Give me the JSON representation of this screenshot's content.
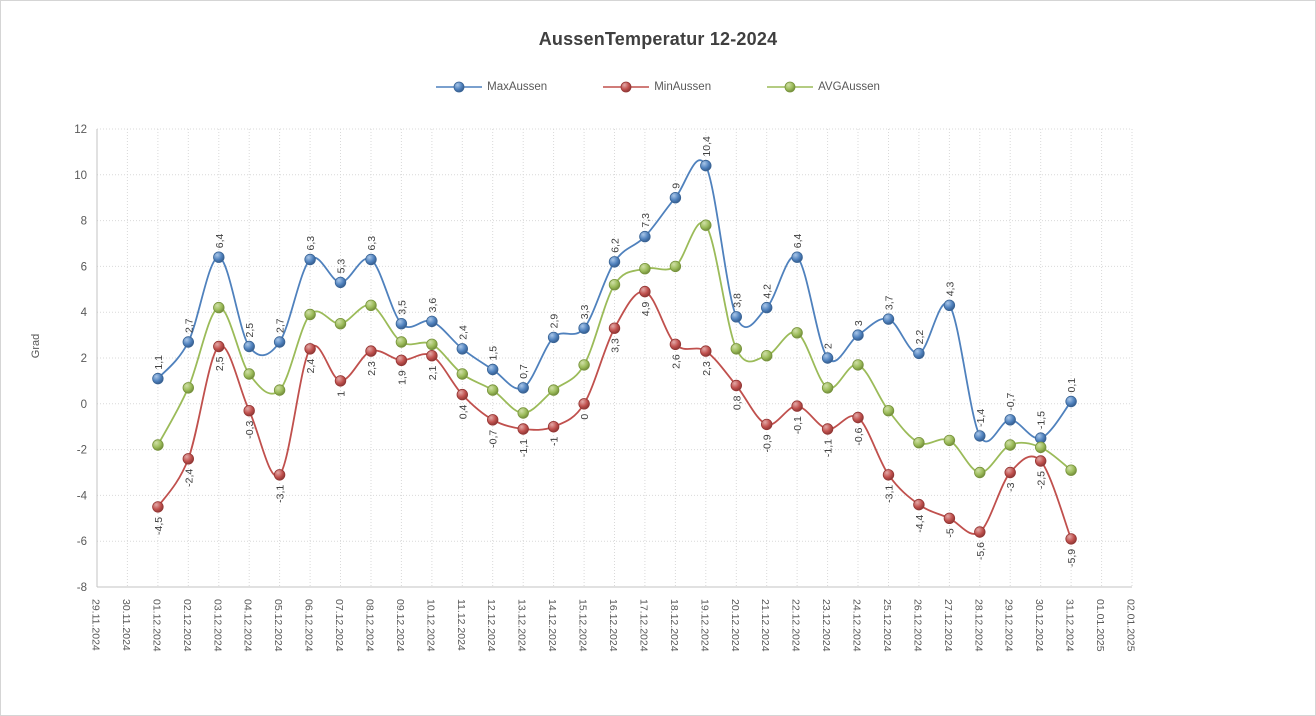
{
  "window": {
    "background": "#ffffff",
    "border_color": "#d5d5d5"
  },
  "chart_data": {
    "type": "line",
    "title": "AussenTemperatur 12-2024",
    "xlabel": "",
    "ylabel": "Grad",
    "ylim": [
      -8,
      12
    ],
    "ytick_step": 2,
    "ytick_labels": [
      "12",
      "10",
      "8",
      "6",
      "4",
      "2",
      "0",
      "-2",
      "-4",
      "-6",
      "-8"
    ],
    "grid": true,
    "grid_color": "#d9d9d9",
    "axis_text_color": "#595959",
    "label_text_color": "#404040",
    "legend_position": "top",
    "smooth_lines": true,
    "x_labels": [
      "29.11.2024",
      "30.11.2024",
      "01.12.2024",
      "02.12.2024",
      "03.12.2024",
      "04.12.2024",
      "05.12.2024",
      "06.12.2024",
      "07.12.2024",
      "08.12.2024",
      "09.12.2024",
      "10.12.2024",
      "11.12.2024",
      "12.12.2024",
      "13.12.2024",
      "14.12.2024",
      "15.12.2024",
      "16.12.2024",
      "17.12.2024",
      "18.12.2024",
      "19.12.2024",
      "20.12.2024",
      "21.12.2024",
      "22.12.2024",
      "23.12.2024",
      "24.12.2024",
      "25.12.2024",
      "26.12.2024",
      "27.12.2024",
      "28.12.2024",
      "29.12.2024",
      "30.12.2024",
      "31.12.2024",
      "01.01.2025",
      "02.01.2025"
    ],
    "data_start_index": 2,
    "series": [
      {
        "name": "MaxAussen",
        "color": "#4F81BD",
        "marker_light": "#A9C6E8",
        "marker_dark": "#2F5380",
        "marker_stroke": "#3A6495",
        "label_position": "above",
        "values": [
          1.1,
          2.7,
          6.4,
          2.5,
          2.7,
          6.3,
          5.3,
          6.3,
          3.5,
          3.6,
          2.4,
          1.5,
          0.7,
          2.9,
          3.3,
          6.2,
          7.3,
          9,
          10.4,
          3.8,
          4.2,
          6.4,
          2,
          3,
          3.7,
          2.2,
          4.3,
          -1.4,
          -0.7,
          -1.5,
          0.1
        ],
        "labels": [
          "1,1",
          "2,7",
          "6,4",
          "2,5",
          "2,7",
          "6,3",
          "5,3",
          "6,3",
          "3,5",
          "3,6",
          "2,4",
          "1,5",
          "0,7",
          "2,9",
          "3,3",
          "6,2",
          "7,3",
          "9",
          "10,4",
          "3,8",
          "4,2",
          "6,4",
          "2",
          "3",
          "3,7",
          "2,2",
          "4,3",
          "-1,4",
          "-0,7",
          "-1,5",
          "0,1"
        ]
      },
      {
        "name": "MinAussen",
        "color": "#C0504D",
        "marker_light": "#E2A9A7",
        "marker_dark": "#7E3230",
        "marker_stroke": "#943634",
        "label_position": "below",
        "values": [
          -4.5,
          -2.4,
          2.5,
          -0.3,
          -3.1,
          2.4,
          1,
          2.3,
          1.9,
          2.1,
          0.4,
          -0.7,
          -1.1,
          -1,
          0,
          3.3,
          4.9,
          2.6,
          2.3,
          0.8,
          -0.9,
          -0.1,
          -1.1,
          -0.6,
          -3.1,
          -4.4,
          -5,
          -5.6,
          -3,
          -2.5,
          -5.9
        ],
        "labels": [
          "-4,5",
          "-2,4",
          "2,5",
          "-0,3",
          "-3,1",
          "2,4",
          "1",
          "2,3",
          "1,9",
          "2,1",
          "0,4",
          "-0,7",
          "-1,1",
          "-1",
          "0",
          "3,3",
          "4,9",
          "2,6",
          "2,3",
          "0,8",
          "-0,9",
          "-0,1",
          "-1,1",
          "-0,6",
          "-3,1",
          "-4,4",
          "-5",
          "-5,6",
          "-3",
          "-2,5",
          "-5,9"
        ]
      },
      {
        "name": "AVGAussen",
        "color": "#9BBB59",
        "marker_light": "#D0DFA7",
        "marker_dark": "#677F34",
        "marker_stroke": "#77933C",
        "label_position": "none",
        "values": [
          -1.8,
          0.7,
          4.2,
          1.3,
          0.6,
          3.9,
          3.5,
          4.3,
          2.7,
          2.6,
          1.3,
          0.6,
          -0.4,
          0.6,
          1.7,
          5.2,
          5.9,
          6.0,
          7.8,
          2.4,
          2.1,
          3.1,
          0.7,
          1.7,
          -0.3,
          -1.7,
          -1.6,
          -3.0,
          -1.8,
          -1.9,
          -2.9
        ],
        "labels": []
      }
    ]
  }
}
